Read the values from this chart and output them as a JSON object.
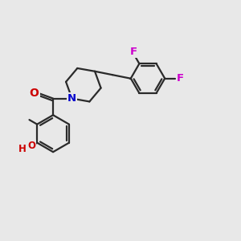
{
  "background_color": "#e8e8e8",
  "bond_color": "#2a2a2a",
  "bond_width": 1.6,
  "atom_colors": {
    "O": "#cc0000",
    "N": "#0000cc",
    "F": "#cc00cc",
    "C": "#2a2a2a"
  },
  "coord_system": {
    "xlim": [
      0,
      10
    ],
    "ylim": [
      0,
      10
    ]
  }
}
